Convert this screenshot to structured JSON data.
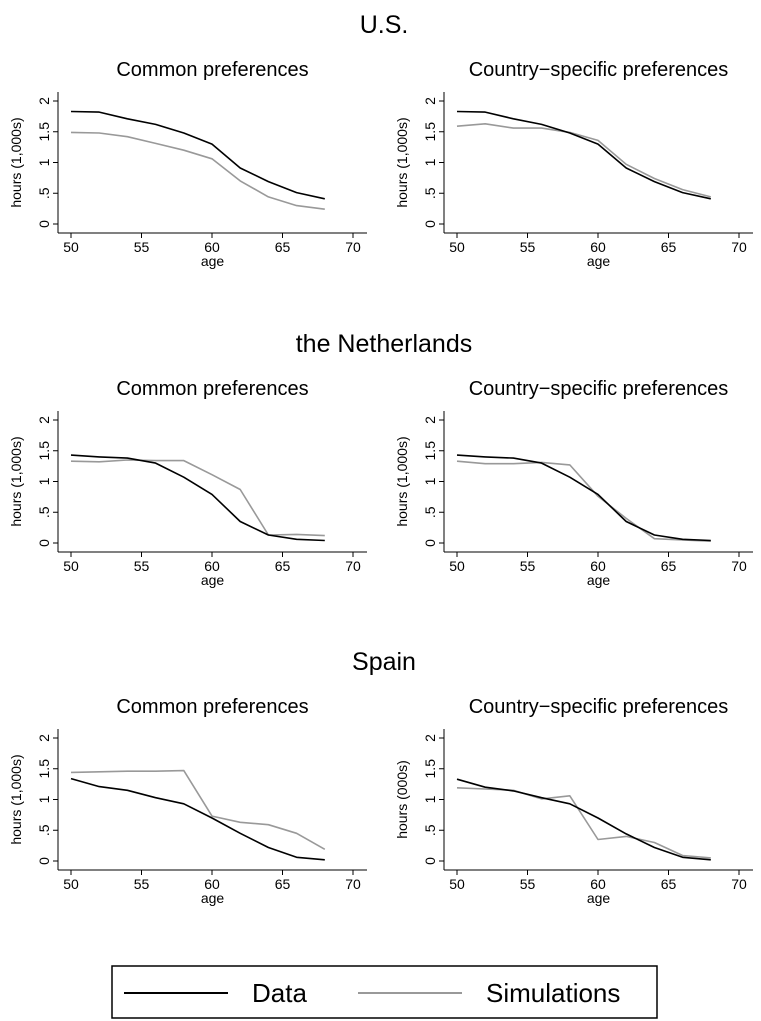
{
  "legend": {
    "items": [
      {
        "label": "Data",
        "color": "#000000"
      },
      {
        "label": "Simulations",
        "color": "#999999"
      }
    ]
  },
  "chart_data": [
    {
      "group_title": "U.S.",
      "title": "Common preferences",
      "type": "line",
      "xlabel": "age",
      "ylabel": "hours (1,000s)",
      "xlim": [
        50,
        70
      ],
      "ylim": [
        0,
        2
      ],
      "xticks": [
        "50",
        "55",
        "60",
        "65",
        "70"
      ],
      "yticks": [
        "0",
        ".5",
        "1",
        "1.5",
        "2"
      ],
      "grid": false,
      "x": [
        50,
        52,
        54,
        56,
        58,
        60,
        62,
        64,
        66,
        68
      ],
      "series": [
        {
          "name": "Data",
          "color": "#000000",
          "values": [
            1.83,
            1.82,
            1.71,
            1.62,
            1.48,
            1.3,
            0.91,
            0.69,
            0.51,
            0.41
          ]
        },
        {
          "name": "Simulations",
          "color": "#999999",
          "values": [
            1.49,
            1.48,
            1.42,
            1.31,
            1.2,
            1.06,
            0.7,
            0.44,
            0.3,
            0.24
          ]
        }
      ]
    },
    {
      "group_title": "U.S.",
      "title": "Country−specific preferences",
      "type": "line",
      "xlabel": "age",
      "ylabel": "hours (1,000s)",
      "xlim": [
        50,
        70
      ],
      "ylim": [
        0,
        2
      ],
      "xticks": [
        "50",
        "55",
        "60",
        "65",
        "70"
      ],
      "yticks": [
        "0",
        ".5",
        "1",
        "1.5",
        "2"
      ],
      "grid": false,
      "x": [
        50,
        52,
        54,
        56,
        58,
        60,
        62,
        64,
        66,
        68
      ],
      "series": [
        {
          "name": "Data",
          "color": "#000000",
          "values": [
            1.83,
            1.82,
            1.71,
            1.62,
            1.48,
            1.3,
            0.91,
            0.69,
            0.51,
            0.41
          ]
        },
        {
          "name": "Simulations",
          "color": "#999999",
          "values": [
            1.59,
            1.63,
            1.56,
            1.56,
            1.49,
            1.36,
            0.97,
            0.74,
            0.56,
            0.44
          ]
        }
      ]
    },
    {
      "group_title": "the Netherlands",
      "title": "Common preferences",
      "type": "line",
      "xlabel": "age",
      "ylabel": "hours (1,000s)",
      "xlim": [
        50,
        70
      ],
      "ylim": [
        0,
        2
      ],
      "xticks": [
        "50",
        "55",
        "60",
        "65",
        "70"
      ],
      "yticks": [
        "0",
        ".5",
        "1",
        "1.5",
        "2"
      ],
      "grid": false,
      "x": [
        50,
        52,
        54,
        56,
        58,
        60,
        62,
        64,
        66,
        68
      ],
      "series": [
        {
          "name": "Data",
          "color": "#000000",
          "values": [
            1.43,
            1.4,
            1.38,
            1.3,
            1.07,
            0.79,
            0.35,
            0.13,
            0.06,
            0.04
          ]
        },
        {
          "name": "Simulations",
          "color": "#999999",
          "values": [
            1.33,
            1.32,
            1.35,
            1.34,
            1.34,
            1.11,
            0.87,
            0.13,
            0.14,
            0.12
          ]
        }
      ]
    },
    {
      "group_title": "the Netherlands",
      "title": "Country−specific preferences",
      "type": "line",
      "xlabel": "age",
      "ylabel": "hours (1,000s)",
      "xlim": [
        50,
        70
      ],
      "ylim": [
        0,
        2
      ],
      "xticks": [
        "50",
        "55",
        "60",
        "65",
        "70"
      ],
      "yticks": [
        "0",
        ".5",
        "1",
        "1.5",
        "2"
      ],
      "grid": false,
      "x": [
        50,
        52,
        54,
        56,
        58,
        60,
        62,
        64,
        66,
        68
      ],
      "series": [
        {
          "name": "Data",
          "color": "#000000",
          "values": [
            1.43,
            1.4,
            1.38,
            1.3,
            1.07,
            0.79,
            0.35,
            0.13,
            0.06,
            0.04
          ]
        },
        {
          "name": "Simulations",
          "color": "#999999",
          "values": [
            1.33,
            1.29,
            1.29,
            1.31,
            1.27,
            0.76,
            0.4,
            0.07,
            0.05,
            0.03
          ]
        }
      ]
    },
    {
      "group_title": "Spain",
      "title": "Common preferences",
      "type": "line",
      "xlabel": "age",
      "ylabel": "hours (1,000s)",
      "xlim": [
        50,
        70
      ],
      "ylim": [
        0,
        2
      ],
      "xticks": [
        "50",
        "55",
        "60",
        "65",
        "70"
      ],
      "yticks": [
        "0",
        ".5",
        "1",
        "1.5",
        "2"
      ],
      "grid": false,
      "x": [
        50,
        52,
        54,
        56,
        58,
        60,
        62,
        64,
        66,
        68
      ],
      "series": [
        {
          "name": "Data",
          "color": "#000000",
          "values": [
            1.34,
            1.21,
            1.15,
            1.03,
            0.93,
            0.7,
            0.45,
            0.22,
            0.06,
            0.02
          ]
        },
        {
          "name": "Simulations",
          "color": "#999999",
          "values": [
            1.44,
            1.45,
            1.46,
            1.46,
            1.47,
            0.73,
            0.63,
            0.59,
            0.45,
            0.19
          ]
        }
      ]
    },
    {
      "group_title": "Spain",
      "title": "Country−specific preferences",
      "type": "line",
      "xlabel": "age",
      "ylabel": "hours (000s)",
      "xlim": [
        50,
        70
      ],
      "ylim": [
        0,
        2
      ],
      "xticks": [
        "50",
        "55",
        "60",
        "65",
        "70"
      ],
      "yticks": [
        "0",
        ".5",
        "1",
        "1.5",
        "2"
      ],
      "grid": false,
      "x": [
        50,
        52,
        54,
        56,
        58,
        60,
        62,
        64,
        66,
        68
      ],
      "series": [
        {
          "name": "Data",
          "color": "#000000",
          "values": [
            1.33,
            1.2,
            1.14,
            1.03,
            0.93,
            0.7,
            0.44,
            0.22,
            0.06,
            0.02
          ]
        },
        {
          "name": "Simulations",
          "color": "#999999",
          "values": [
            1.19,
            1.17,
            1.15,
            1.01,
            1.06,
            0.35,
            0.4,
            0.3,
            0.09,
            0.05
          ]
        }
      ]
    }
  ]
}
